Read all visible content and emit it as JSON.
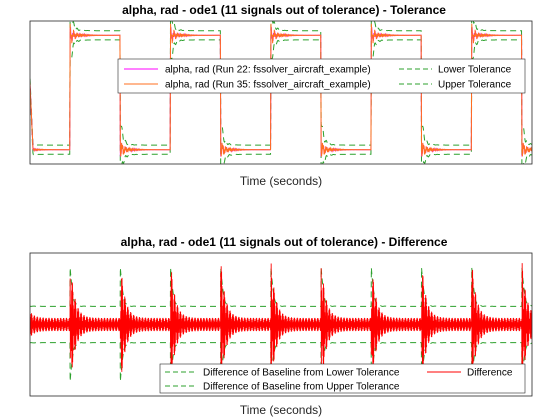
{
  "chart_data": [
    {
      "type": "line",
      "title": "alpha, rad - ode1 (11 signals out of tolerance) - Tolerance",
      "xlabel": "Time (seconds)",
      "ylabel": "",
      "xlim": [
        0,
        100
      ],
      "ylim": [
        -1.25,
        1.25
      ],
      "grid": false,
      "legend_position": "top-right",
      "legend_columns": 2,
      "period": 20,
      "square_wave": {
        "high": 1,
        "low": -1,
        "rise_at": 8,
        "fall_at": 18,
        "start": 0.15
      },
      "series": [
        {
          "name": "alpha, rad (Run 22: fssolver_aircraft_example)",
          "color": "#ff00ff",
          "style": "solid"
        },
        {
          "name": "alpha, rad (Run 35: fssolver_aircraft_example)",
          "color": "#ff6f1f",
          "style": "solid"
        },
        {
          "name": "Lower Tolerance",
          "color": "#2ca02c",
          "style": "dashed"
        },
        {
          "name": "Upper Tolerance",
          "color": "#2ca02c",
          "style": "dashed"
        }
      ],
      "tolerance_band": 0.08,
      "tolerance_widen_after_edge": 0.45
    },
    {
      "type": "line",
      "title": "alpha, rad - ode1 (11 signals out of tolerance) - Difference",
      "xlabel": "Time (seconds)",
      "ylabel": "",
      "xlim": [
        0,
        100
      ],
      "ylim": [
        -1.3,
        1.3
      ],
      "grid": false,
      "legend_position": "bottom-right",
      "legend_columns": 2,
      "period": 10,
      "edges_at": [
        8,
        18,
        28,
        38,
        48,
        58,
        68,
        78,
        88,
        98
      ],
      "baseline_amplitude": 0.12,
      "peak_amplitude": 1.05,
      "series": [
        {
          "name": "Difference of Baseline from Lower Tolerance",
          "color": "#2ca02c",
          "style": "dashed"
        },
        {
          "name": "Difference",
          "color": "#ff0000",
          "style": "solid"
        },
        {
          "name": "Difference of Baseline from Upper Tolerance",
          "color": "#2ca02c",
          "style": "dashed"
        }
      ]
    }
  ]
}
